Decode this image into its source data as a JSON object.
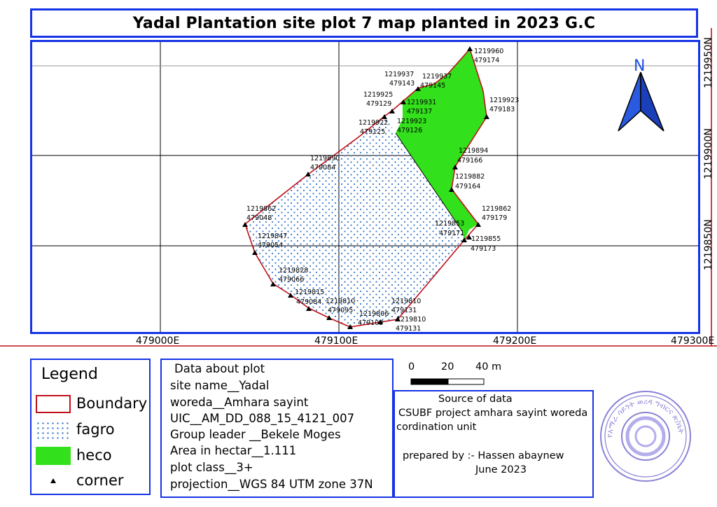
{
  "title": "Yadal Plantation site plot 7 map planted in 2023 G.C",
  "map": {
    "x_labels": [
      "479000E",
      "479100E",
      "479200E",
      "479300E"
    ],
    "y_labels": [
      "1219950N",
      "1219900N",
      "1219850N"
    ],
    "north_label": "N",
    "colors": {
      "boundary": "#c0101a",
      "fagro_dots": "#3a78c9",
      "heco": "#33e01c",
      "frame": "#1533e6"
    },
    "corner_labels": [
      [
        "1219960",
        "479174"
      ],
      [
        "1219937",
        "479143"
      ],
      [
        "1219937",
        "479145"
      ],
      [
        "1219925",
        "479129"
      ],
      [
        "1219931",
        "479137"
      ],
      [
        "1219923",
        "479183"
      ],
      [
        "1219922",
        "479125"
      ],
      [
        "1219923",
        "479126"
      ],
      [
        "1219894",
        "479166"
      ],
      [
        "1219890",
        "479084"
      ],
      [
        "1219882",
        "479164"
      ],
      [
        "1219862",
        "479048"
      ],
      [
        "1219862",
        "479179"
      ],
      [
        "1219853",
        "479171"
      ],
      [
        "1219847",
        "479054"
      ],
      [
        "1219855",
        "479173"
      ],
      [
        "1219828",
        "479066"
      ],
      [
        "1219815",
        "479084"
      ],
      [
        "1219810",
        "479095"
      ],
      [
        "1219810",
        "479131"
      ],
      [
        "1219806",
        "479109"
      ],
      [
        "1219810",
        "479131"
      ]
    ]
  },
  "legend": {
    "title": "Legend",
    "items": [
      {
        "label": "Boundary",
        "symbol": "boundary"
      },
      {
        "label": "fagro",
        "symbol": "fagro"
      },
      {
        "label": "heco",
        "symbol": "heco"
      },
      {
        "label": "corner",
        "symbol": "corner"
      }
    ]
  },
  "plot_data": {
    "heading": "Data about plot",
    "lines": [
      "site name__Yadal",
      "woreda__Amhara sayint",
      "UIC__AM_DD_088_15_4121_007",
      "Group leader __Bekele Moges",
      "Area in hectar__1.111",
      "plot class__3+",
      "projection__WGS 84 UTM zone 37N"
    ]
  },
  "scale_bar": {
    "ticks": [
      "0",
      "20",
      "40 m"
    ]
  },
  "source": {
    "heading": "Source of data",
    "line1": "CSUBF project amhara sayint woreda",
    "line2": "cordination unit",
    "prepared": "prepared by :- Hassen abaynew",
    "date": "June 2023"
  },
  "stamp": {
    "text": "የአማራ ሳይንት ወረዳ ግብርና ጽ/ቤት"
  }
}
